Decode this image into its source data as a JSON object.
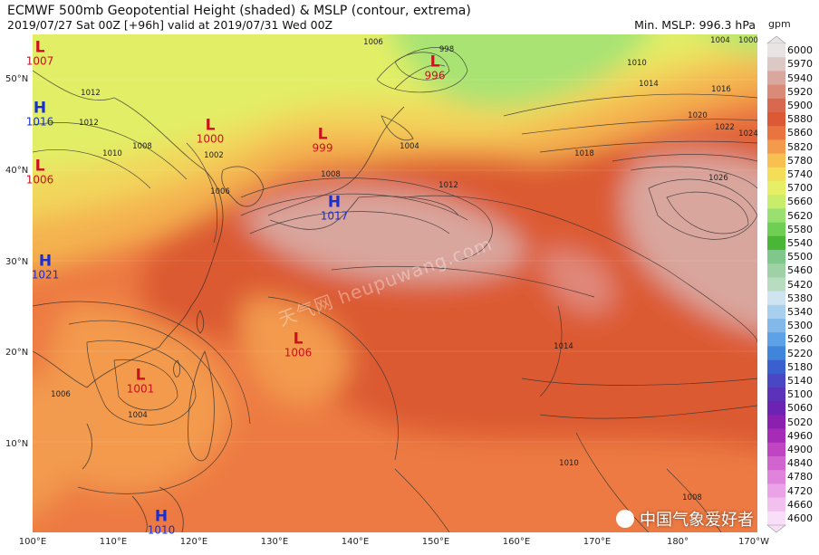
{
  "header": {
    "title": "ECMWF 500mb Geopotential Height (shaded) & MSLP (contour, extrema)",
    "subtitle": "2019/07/27 Sat 00Z [+96h] valid at 2019/07/31 Wed 00Z",
    "min_mslp": "Min. MSLP: 996.3 hPa"
  },
  "axes": {
    "latitudes": [
      "50°N",
      "40°N",
      "30°N",
      "20°N",
      "10°N"
    ],
    "longitudes": [
      "100°E",
      "110°E",
      "120°E",
      "130°E",
      "140°E",
      "150°E",
      "160°E",
      "170°E",
      "180°",
      "170°W"
    ]
  },
  "colorbar": {
    "unit": "gpm",
    "levels": [
      "6000",
      "5970",
      "5940",
      "5920",
      "5900",
      "5880",
      "5860",
      "5820",
      "5780",
      "5740",
      "5700",
      "5660",
      "5620",
      "5580",
      "5540",
      "5500",
      "5460",
      "5420",
      "5380",
      "5340",
      "5300",
      "5260",
      "5220",
      "5180",
      "5140",
      "5100",
      "5060",
      "5020",
      "4960",
      "4900",
      "4840",
      "4780",
      "4720",
      "4660",
      "4600"
    ],
    "colors": [
      "#e8e4e4",
      "#dcc8c4",
      "#d9a79d",
      "#d98b78",
      "#d8684e",
      "#db5a35",
      "#e9743f",
      "#f39a4d",
      "#f8c051",
      "#f4de58",
      "#e7ef66",
      "#c9ec6a",
      "#99e071",
      "#6fcf52",
      "#49b636",
      "#7fc78a",
      "#9ed2a6",
      "#b8dcc0",
      "#cfe4f0",
      "#a9cfee",
      "#83b8ea",
      "#5da2e6",
      "#3f85d9",
      "#3a5fcf",
      "#4a47c4",
      "#5b33bb",
      "#6c22b2",
      "#8a1fb0",
      "#a62cb8",
      "#bf45c3",
      "#d264cf",
      "#e083dc",
      "#eba2e6",
      "#f2c0ee",
      "#f8def7"
    ]
  },
  "pressure_centers": [
    {
      "type": "L",
      "value": "996",
      "color": "#cc1020"
    },
    {
      "type": "L",
      "value": "1000",
      "color": "#cc1020"
    },
    {
      "type": "L",
      "value": "999",
      "color": "#cc1020"
    },
    {
      "type": "H",
      "value": "1017",
      "color": "#1a2fd0"
    },
    {
      "type": "L",
      "value": "1006",
      "color": "#cc1020"
    },
    {
      "type": "L",
      "value": "1001",
      "color": "#cc1020"
    },
    {
      "type": "H",
      "value": "1016",
      "color": "#1a2fd0"
    },
    {
      "type": "H",
      "value": "1021",
      "color": "#1a2fd0"
    },
    {
      "type": "L",
      "value": "1007",
      "color": "#cc1020"
    },
    {
      "type": "L",
      "value": "1006",
      "color": "#cc1020"
    },
    {
      "type": "H",
      "value": "1010",
      "color": "#1a2fd0"
    }
  ],
  "isobar_labels": [
    "998",
    "1004",
    "1006",
    "1010",
    "1012",
    "1014",
    "1016",
    "1018",
    "1020",
    "1022",
    "1024",
    "1026",
    "1008",
    "1004",
    "1006",
    "1012",
    "1008",
    "1014",
    "1010",
    "1006",
    "1008",
    "1004",
    "1000",
    "1002",
    "1010",
    "1012"
  ],
  "watermark": "天气网 heupuwang.com",
  "brand": "中国气象爱好者"
}
